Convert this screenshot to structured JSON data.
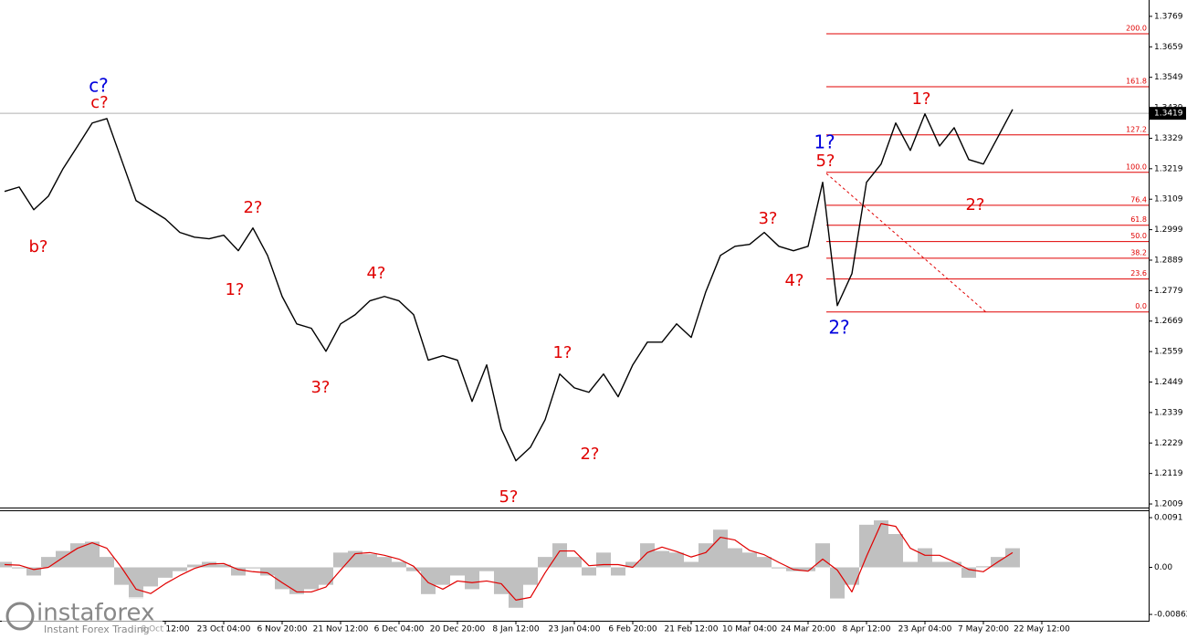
{
  "chart_data": [
    {
      "type": "line",
      "categories": [
        null,
        null,
        null,
        null,
        null,
        null,
        null,
        null,
        null,
        null,
        null,
        "8 Oct 12:00",
        null,
        null,
        null,
        "23 Oct 04:00",
        null,
        null,
        null,
        "6 Nov 20:00",
        null,
        null,
        null,
        "21 Nov 12:00",
        null,
        null,
        null,
        "6 Dec 04:00",
        null,
        null,
        null,
        "20 Dec 20:00",
        null,
        null,
        null,
        "8 Jan 12:00",
        null,
        null,
        null,
        "23 Jan 04:00",
        null,
        null,
        null,
        "6 Feb 20:00",
        null,
        null,
        null,
        "21 Feb 12:00",
        null,
        null,
        null,
        "10 Mar 04:00",
        null,
        null,
        null,
        "24 Mar 20:00",
        null,
        null,
        null,
        "8 Apr 12:00",
        null,
        null,
        null,
        "23 Apr 04:00",
        null,
        null,
        null,
        "7 May 20:00",
        null,
        null,
        null,
        "22 May 12:00",
        null
      ],
      "series": [
        {
          "color": "#000000",
          "values": [
            1.3137,
            1.3153,
            1.3071,
            1.312,
            1.3219,
            1.3301,
            1.3384,
            1.34,
            1.3252,
            1.3104,
            1.3071,
            1.3038,
            1.2989,
            1.2972,
            1.2966,
            1.2979,
            1.2923,
            1.3005,
            1.2906,
            1.2758,
            1.2659,
            1.2643,
            1.256,
            1.2659,
            1.2692,
            1.2742,
            1.2758,
            1.2742,
            1.2692,
            1.2528,
            1.2544,
            1.2528,
            1.2379,
            1.2511,
            1.228,
            1.2165,
            1.2214,
            1.2313,
            1.2478,
            1.2428,
            1.2412,
            1.2478,
            1.2396,
            1.2511,
            1.2593,
            1.2593,
            1.2659,
            1.261,
            1.2775,
            1.2906,
            1.2939,
            1.2946,
            1.2989,
            1.2939,
            1.2923,
            1.2939,
            1.317,
            1.2725,
            1.284,
            1.317,
            1.3236,
            1.3384,
            1.3285,
            1.3417,
            1.3301,
            1.3367,
            1.3252,
            1.3236,
            1.3334,
            1.3433,
            null,
            null,
            null
          ]
        }
      ],
      "ylim": [
        1.1996,
        1.3828
      ],
      "yticks": [
        1.2009,
        1.2119,
        1.2229,
        1.2339,
        1.2449,
        1.2559,
        1.2669,
        1.2779,
        1.2889,
        1.2999,
        1.3109,
        1.3219,
        1.3329,
        1.3439,
        1.3549,
        1.3659,
        1.3769
      ],
      "current_price": 1.3419,
      "fib_color": "#e00000",
      "fib_levels": [
        {
          "label": "200.0",
          "price": 1.3706
        },
        {
          "label": "161.8",
          "price": 1.3515
        },
        {
          "label": "127.2",
          "price": 1.3341
        },
        {
          "label": "100.0",
          "price": 1.3206
        },
        {
          "label": "76.4",
          "price": 1.3087
        },
        {
          "label": "61.8",
          "price": 1.3015
        },
        {
          "label": "50.0",
          "price": 1.2956
        },
        {
          "label": "38.2",
          "price": 1.2896
        },
        {
          "label": "23.6",
          "price": 1.2821
        },
        {
          "label": "0.0",
          "price": 1.2702
        }
      ],
      "wave_labels": [
        {
          "text": "c?",
          "color": "#0000dd"
        },
        {
          "text": "c?",
          "color": "#e00000"
        },
        {
          "text": "b?",
          "color": "#e00000"
        },
        {
          "text": "2?",
          "color": "#e00000"
        },
        {
          "text": "1?",
          "color": "#e00000"
        },
        {
          "text": "3?",
          "color": "#e00000"
        },
        {
          "text": "4?",
          "color": "#e00000"
        },
        {
          "text": "5?",
          "color": "#e00000"
        },
        {
          "text": "1?",
          "color": "#e00000"
        },
        {
          "text": "2?",
          "color": "#e00000"
        },
        {
          "text": "3?",
          "color": "#e00000"
        },
        {
          "text": "4?",
          "color": "#e00000"
        },
        {
          "text": "5?",
          "color": "#e00000"
        },
        {
          "text": "1?",
          "color": "#0000dd"
        },
        {
          "text": "2?",
          "color": "#0000dd"
        },
        {
          "text": "1?",
          "color": "#e00000"
        },
        {
          "text": "2?",
          "color": "#e00000"
        }
      ]
    },
    {
      "type": "bar",
      "series": [
        {
          "style": "bars",
          "color": "#c0c0c0",
          "values": [
            0.001,
            -0.0002,
            -0.0015,
            0.0019,
            0.003,
            0.0044,
            0.0047,
            0.0019,
            -0.0032,
            -0.0057,
            -0.0035,
            -0.0019,
            -0.0007,
            0.0005,
            0.001,
            0.0005,
            -0.0015,
            -0.0002,
            -0.0015,
            -0.004,
            -0.0049,
            -0.004,
            -0.0032,
            0.0027,
            0.003,
            0.0024,
            0.0019,
            0.001,
            -0.0007,
            -0.0049,
            -0.0032,
            -0.0015,
            -0.004,
            -0.0007,
            -0.0049,
            -0.0074,
            -0.0032,
            0.0019,
            0.0044,
            0.0019,
            -0.0015,
            0.0027,
            -0.0015,
            0.001,
            0.0044,
            0.003,
            0.0027,
            0.001,
            0.0044,
            0.0069,
            0.0035,
            0.0027,
            0.0019,
            -0.0002,
            -0.0007,
            -0.0007,
            0.0044,
            -0.0057,
            -0.0032,
            0.0078,
            0.0086,
            0.0061,
            0.001,
            0.0035,
            0.001,
            0.001,
            -0.0019,
            0.0002,
            0.0019,
            0.0035,
            null,
            null,
            null
          ]
        },
        {
          "style": "line",
          "color": "#e00000",
          "values": [
            0.0005,
            0.0004,
            -0.0004,
            0.0,
            0.0018,
            0.0035,
            0.0045,
            0.0035,
            0.0,
            -0.004,
            -0.0048,
            -0.003,
            -0.0015,
            -0.0002,
            0.0006,
            0.0007,
            -0.0004,
            -0.0008,
            -0.001,
            -0.0028,
            -0.0045,
            -0.0045,
            -0.0036,
            -0.0005,
            0.0025,
            0.0027,
            0.0022,
            0.0015,
            0.0002,
            -0.0028,
            -0.004,
            -0.0025,
            -0.0028,
            -0.0025,
            -0.003,
            -0.006,
            -0.0055,
            -0.001,
            0.003,
            0.003,
            0.0003,
            0.0005,
            0.0005,
            0.0,
            0.0027,
            0.0037,
            0.0029,
            0.0019,
            0.0027,
            0.0055,
            0.005,
            0.0031,
            0.0023,
            0.0009,
            -0.0004,
            -0.0007,
            0.0015,
            -0.0005,
            -0.0045,
            0.002,
            0.008,
            0.0075,
            0.0035,
            0.0022,
            0.0022,
            0.001,
            -0.0004,
            -0.0008,
            0.001,
            0.0027,
            null,
            null,
            null
          ]
        }
      ],
      "ylim": [
        -0.00978,
        0.01028
      ],
      "yticks": [
        0.0091,
        {
          "value": 0,
          "label": "0.00"
        },
        -0.00862
      ]
    }
  ],
  "watermark": {
    "brand": "instaforex",
    "tagline": "Instant Forex Trading"
  }
}
